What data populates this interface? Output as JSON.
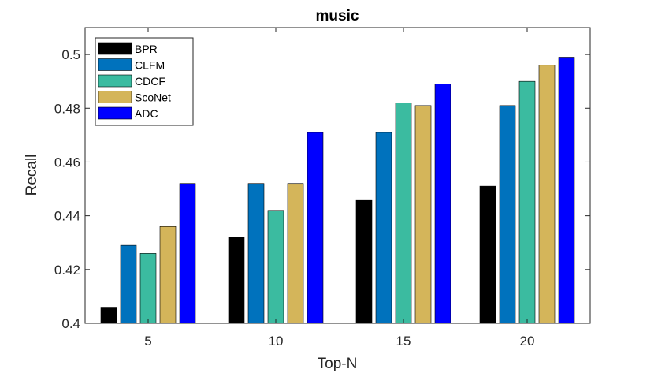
{
  "chart_data": {
    "type": "bar",
    "title": "music",
    "xlabel": "Top-N",
    "ylabel": "Recall",
    "categories": [
      "5",
      "10",
      "15",
      "20"
    ],
    "ylim": [
      0.4,
      0.51
    ],
    "yticks": [
      0.4,
      0.42,
      0.44,
      0.46,
      0.48,
      0.5
    ],
    "ytick_labels": [
      "0.4",
      "0.42",
      "0.44",
      "0.46",
      "0.48",
      "0.5"
    ],
    "legend_position": "top-left",
    "grid": false,
    "series": [
      {
        "name": "BPR",
        "color": "#000000",
        "values": [
          0.406,
          0.432,
          0.446,
          0.451
        ]
      },
      {
        "name": "CLFM",
        "color": "#0072BD",
        "values": [
          0.429,
          0.452,
          0.471,
          0.481
        ]
      },
      {
        "name": "CDCF",
        "color": "#3BBBA0",
        "values": [
          0.426,
          0.442,
          0.482,
          0.49
        ]
      },
      {
        "name": "ScoNet",
        "color": "#D4B55A",
        "values": [
          0.436,
          0.452,
          0.481,
          0.496
        ]
      },
      {
        "name": "ADC",
        "color": "#0000FF",
        "values": [
          0.452,
          0.471,
          0.489,
          0.499
        ]
      }
    ]
  }
}
